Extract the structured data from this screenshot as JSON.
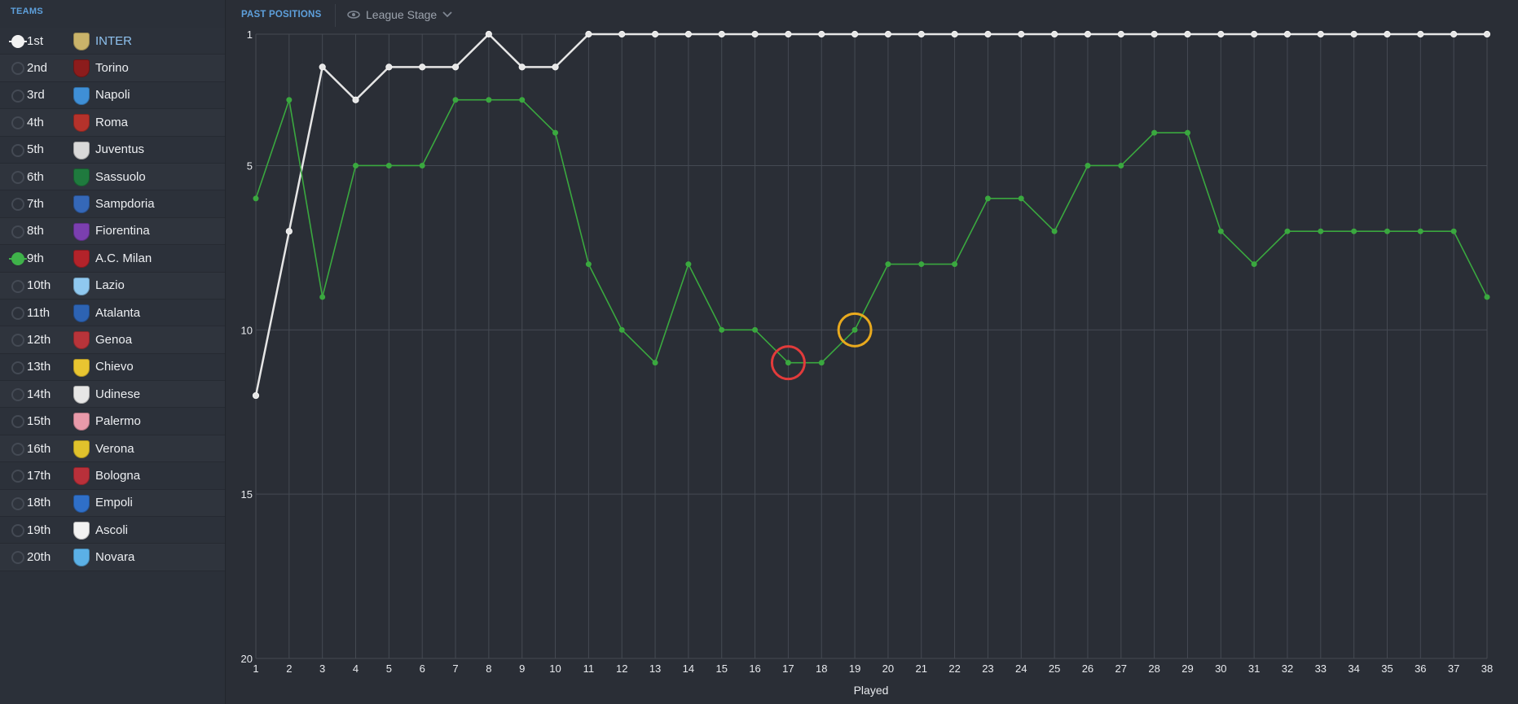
{
  "sidebar": {
    "header": "TEAMS",
    "teams": [
      {
        "pos": "1st",
        "name": "INTER",
        "crest": "#c9b36a",
        "state": "white",
        "highlight": true
      },
      {
        "pos": "2nd",
        "name": "Torino",
        "crest": "#8c1c1c",
        "state": "off",
        "highlight": false
      },
      {
        "pos": "3rd",
        "name": "Napoli",
        "crest": "#3f8fd6",
        "state": "off",
        "highlight": false
      },
      {
        "pos": "4th",
        "name": "Roma",
        "crest": "#b5322b",
        "state": "off",
        "highlight": false
      },
      {
        "pos": "5th",
        "name": "Juventus",
        "crest": "#d9d9d9",
        "state": "off",
        "highlight": false
      },
      {
        "pos": "6th",
        "name": "Sassuolo",
        "crest": "#1f7a3e",
        "state": "off",
        "highlight": false
      },
      {
        "pos": "7th",
        "name": "Sampdoria",
        "crest": "#3568b8",
        "state": "off",
        "highlight": false
      },
      {
        "pos": "8th",
        "name": "Fiorentina",
        "crest": "#7b3fb0",
        "state": "off",
        "highlight": false
      },
      {
        "pos": "9th",
        "name": "A.C. Milan",
        "crest": "#b3232a",
        "state": "green",
        "highlight": false
      },
      {
        "pos": "10th",
        "name": "Lazio",
        "crest": "#8fc8ef",
        "state": "off",
        "highlight": false
      },
      {
        "pos": "11th",
        "name": "Atalanta",
        "crest": "#2d63b3",
        "state": "off",
        "highlight": false
      },
      {
        "pos": "12th",
        "name": "Genoa",
        "crest": "#b8343a",
        "state": "off",
        "highlight": false
      },
      {
        "pos": "13th",
        "name": "Chievo",
        "crest": "#e8c531",
        "state": "off",
        "highlight": false
      },
      {
        "pos": "14th",
        "name": "Udinese",
        "crest": "#e6e6e6",
        "state": "off",
        "highlight": false
      },
      {
        "pos": "15th",
        "name": "Palermo",
        "crest": "#e89aaa",
        "state": "off",
        "highlight": false
      },
      {
        "pos": "16th",
        "name": "Verona",
        "crest": "#e0c22c",
        "state": "off",
        "highlight": false
      },
      {
        "pos": "17th",
        "name": "Bologna",
        "crest": "#b9303a",
        "state": "off",
        "highlight": false
      },
      {
        "pos": "18th",
        "name": "Empoli",
        "crest": "#2f6fc8",
        "state": "off",
        "highlight": false
      },
      {
        "pos": "19th",
        "name": "Ascoli",
        "crest": "#f2f2f2",
        "state": "off",
        "highlight": false
      },
      {
        "pos": "20th",
        "name": "Novara",
        "crest": "#5bb0e6",
        "state": "off",
        "highlight": false
      }
    ]
  },
  "topbar": {
    "tab_label": "PAST POSITIONS",
    "stage_label": "League Stage",
    "eye_icon": "eye-icon",
    "chevron_icon": "chevron-down-icon"
  },
  "colors": {
    "background": "#2a2e36",
    "grid": "#454a53",
    "inter_line": "#e6e6e6",
    "milan_line": "#3aa83f",
    "red_marker": "#e23b3b",
    "yellow_marker": "#e8a91e"
  },
  "chart_data": {
    "type": "line",
    "xlabel": "Played",
    "ylabel": "",
    "title": "",
    "x": [
      1,
      2,
      3,
      4,
      5,
      6,
      7,
      8,
      9,
      10,
      11,
      12,
      13,
      14,
      15,
      16,
      17,
      18,
      19,
      20,
      21,
      22,
      23,
      24,
      25,
      26,
      27,
      28,
      29,
      30,
      31,
      32,
      33,
      34,
      35,
      36,
      37,
      38
    ],
    "xlim": [
      1,
      38
    ],
    "ylim": [
      20,
      1
    ],
    "y_inverted": true,
    "yticks": [
      1,
      5,
      10,
      15,
      20
    ],
    "grid": true,
    "series": [
      {
        "name": "INTER",
        "color": "#e6e6e6",
        "values": [
          12,
          7,
          2,
          3,
          2,
          2,
          2,
          1,
          2,
          2,
          1,
          1,
          1,
          1,
          1,
          1,
          1,
          1,
          1,
          1,
          1,
          1,
          1,
          1,
          1,
          1,
          1,
          1,
          1,
          1,
          1,
          1,
          1,
          1,
          1,
          1,
          1,
          1
        ]
      },
      {
        "name": "A.C. Milan",
        "color": "#3aa83f",
        "values": [
          6,
          3,
          9,
          5,
          5,
          5,
          3,
          3,
          3,
          4,
          8,
          10,
          11,
          8,
          10,
          10,
          11,
          11,
          10,
          8,
          8,
          8,
          6,
          6,
          7,
          5,
          5,
          4,
          4,
          7,
          8,
          7,
          7,
          7,
          7,
          7,
          7,
          9
        ]
      }
    ],
    "annotations": [
      {
        "x": 17,
        "y": 11,
        "color": "#e23b3b",
        "shape": "circle"
      },
      {
        "x": 19,
        "y": 10,
        "color": "#e8a91e",
        "shape": "circle"
      }
    ]
  }
}
